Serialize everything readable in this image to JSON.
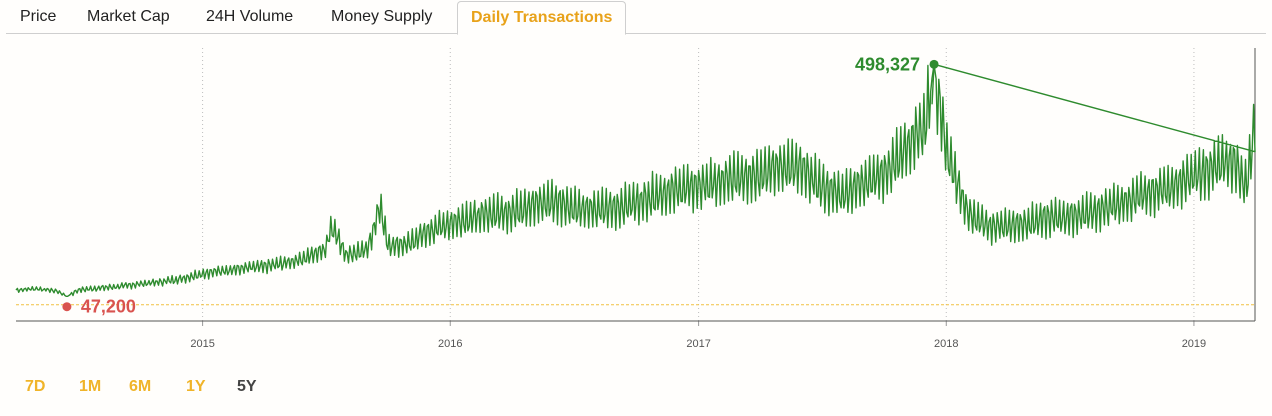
{
  "tabs": [
    {
      "label": "Price",
      "active": false
    },
    {
      "label": "Market Cap",
      "active": false
    },
    {
      "label": "24H Volume",
      "active": false
    },
    {
      "label": "Money Supply",
      "active": false
    },
    {
      "label": "Daily Transactions",
      "active": true
    }
  ],
  "ranges": [
    {
      "label": "7D",
      "active": false
    },
    {
      "label": "1M",
      "active": false
    },
    {
      "label": "6M",
      "active": false
    },
    {
      "label": "1Y",
      "active": false
    },
    {
      "label": "5Y",
      "active": true
    }
  ],
  "colors": {
    "line": "#2e8b2e",
    "max": "#2e8b2e",
    "min": "#d9534f",
    "minline": "#f0c040",
    "accent": "#e8a21a"
  },
  "chart_data": {
    "type": "line",
    "x_axis": "date",
    "xlim": [
      "2014-04-01",
      "2019-04-01"
    ],
    "ylim": [
      0,
      530000
    ],
    "grid": "vertical-dotted",
    "x_ticks": [
      "2015",
      "2016",
      "2017",
      "2018",
      "2019"
    ],
    "max_point": {
      "date": "2017-12-14",
      "value": 498327,
      "label": "498,327"
    },
    "min_point": {
      "date": "2014-06-15",
      "value": 47200,
      "label": "47,200"
    },
    "series": [
      {
        "points": [
          [
            "2014-04-01",
            60000
          ],
          [
            "2014-05-01",
            63000
          ],
          [
            "2014-06-01",
            58000
          ],
          [
            "2014-06-15",
            47200
          ],
          [
            "2014-07-01",
            60000
          ],
          [
            "2014-08-01",
            64000
          ],
          [
            "2014-09-01",
            67000
          ],
          [
            "2014-10-01",
            72000
          ],
          [
            "2014-11-01",
            76000
          ],
          [
            "2014-12-01",
            82000
          ],
          [
            "2015-01-01",
            92000
          ],
          [
            "2015-02-01",
            98000
          ],
          [
            "2015-03-01",
            102000
          ],
          [
            "2015-04-01",
            106000
          ],
          [
            "2015-05-01",
            112000
          ],
          [
            "2015-06-01",
            122000
          ],
          [
            "2015-07-01",
            140000
          ],
          [
            "2015-07-10",
            185000
          ],
          [
            "2015-08-01",
            128000
          ],
          [
            "2015-09-01",
            138000
          ],
          [
            "2015-09-20",
            225000
          ],
          [
            "2015-10-01",
            145000
          ],
          [
            "2015-11-01",
            150000
          ],
          [
            "2015-12-01",
            175000
          ],
          [
            "2016-01-01",
            190000
          ],
          [
            "2016-02-01",
            200000
          ],
          [
            "2016-03-01",
            208000
          ],
          [
            "2016-04-01",
            212000
          ],
          [
            "2016-05-01",
            225000
          ],
          [
            "2016-06-01",
            232000
          ],
          [
            "2016-07-01",
            220000
          ],
          [
            "2016-08-01",
            215000
          ],
          [
            "2016-09-01",
            220000
          ],
          [
            "2016-10-01",
            230000
          ],
          [
            "2016-11-01",
            245000
          ],
          [
            "2016-12-01",
            255000
          ],
          [
            "2017-01-01",
            262000
          ],
          [
            "2017-02-01",
            268000
          ],
          [
            "2017-03-01",
            280000
          ],
          [
            "2017-04-01",
            285000
          ],
          [
            "2017-05-01",
            300000
          ],
          [
            "2017-06-01",
            295000
          ],
          [
            "2017-07-01",
            260000
          ],
          [
            "2017-08-01",
            245000
          ],
          [
            "2017-09-01",
            270000
          ],
          [
            "2017-10-01",
            285000
          ],
          [
            "2017-11-01",
            330000
          ],
          [
            "2017-12-01",
            380000
          ],
          [
            "2017-12-14",
            498327
          ],
          [
            "2018-01-01",
            330000
          ],
          [
            "2018-02-01",
            210000
          ],
          [
            "2018-03-01",
            185000
          ],
          [
            "2018-04-01",
            185000
          ],
          [
            "2018-05-01",
            190000
          ],
          [
            "2018-06-01",
            200000
          ],
          [
            "2018-07-01",
            202000
          ],
          [
            "2018-08-01",
            210000
          ],
          [
            "2018-09-01",
            222000
          ],
          [
            "2018-10-01",
            235000
          ],
          [
            "2018-11-01",
            250000
          ],
          [
            "2018-12-01",
            262000
          ],
          [
            "2019-01-01",
            280000
          ],
          [
            "2019-02-01",
            300000
          ],
          [
            "2019-03-01",
            310000
          ],
          [
            "2019-03-20",
            260000
          ],
          [
            "2019-04-01",
            390000
          ]
        ]
      }
    ]
  }
}
